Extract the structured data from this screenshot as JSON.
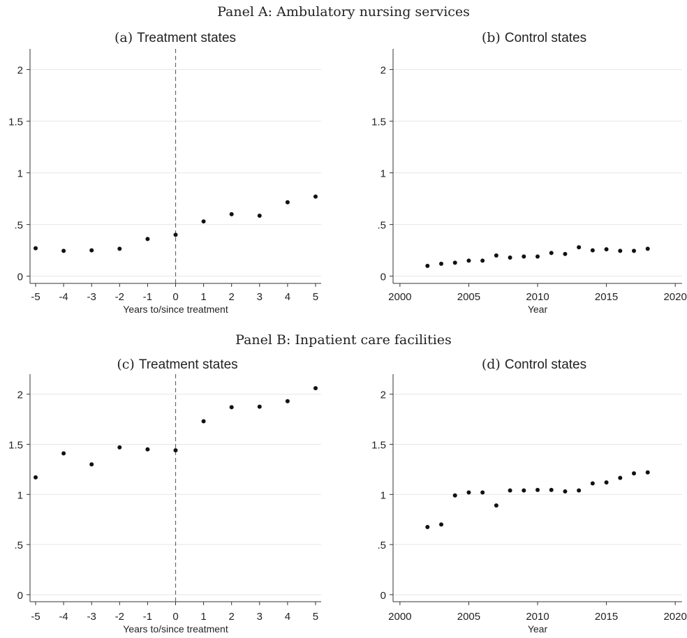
{
  "panels": [
    {
      "label": "Panel A: Ambulatory nursing services"
    },
    {
      "label": "Panel B: Inpatient care facilities"
    }
  ],
  "chart_data": [
    {
      "id": "a",
      "type": "scatter",
      "prefix": "(a)",
      "title": "Treatment states",
      "xlabel": "Years to/since treatment",
      "ylabel": "",
      "xlim": [
        -5.2,
        5.2
      ],
      "ylim": [
        -0.07,
        2.2
      ],
      "xticks": [
        -5,
        -4,
        -3,
        -2,
        -1,
        0,
        1,
        2,
        3,
        4,
        5
      ],
      "xtick_labels": [
        "-5",
        "-4",
        "-3",
        "-2",
        "-1",
        "0",
        "1",
        "2",
        "3",
        "4",
        "5"
      ],
      "yticks": [
        0,
        0.5,
        1,
        1.5,
        2
      ],
      "ytick_labels": [
        "0",
        ".5",
        "1",
        "1.5",
        "2"
      ],
      "grid": true,
      "vline": 0,
      "points": [
        {
          "x": -5,
          "y": 0.27
        },
        {
          "x": -4,
          "y": 0.245
        },
        {
          "x": -3,
          "y": 0.25
        },
        {
          "x": -2,
          "y": 0.265
        },
        {
          "x": -1,
          "y": 0.36
        },
        {
          "x": 0,
          "y": 0.4
        },
        {
          "x": 1,
          "y": 0.53
        },
        {
          "x": 2,
          "y": 0.6
        },
        {
          "x": 3,
          "y": 0.585
        },
        {
          "x": 4,
          "y": 0.715
        },
        {
          "x": 5,
          "y": 0.77
        }
      ]
    },
    {
      "id": "b",
      "type": "scatter",
      "prefix": "(b)",
      "title": "Control states",
      "xlabel": "Year",
      "ylabel": "",
      "xlim": [
        1999.5,
        2020.5
      ],
      "ylim": [
        -0.07,
        2.2
      ],
      "xticks": [
        2000,
        2005,
        2010,
        2015,
        2020
      ],
      "xtick_labels": [
        "2000",
        "2005",
        "2010",
        "2015",
        "2020"
      ],
      "yticks": [
        0,
        0.5,
        1,
        1.5,
        2
      ],
      "ytick_labels": [
        "0",
        ".5",
        "1",
        "1.5",
        "2"
      ],
      "grid": true,
      "vline": null,
      "points": [
        {
          "x": 2002,
          "y": 0.1
        },
        {
          "x": 2003,
          "y": 0.12
        },
        {
          "x": 2004,
          "y": 0.13
        },
        {
          "x": 2005,
          "y": 0.15
        },
        {
          "x": 2006,
          "y": 0.15
        },
        {
          "x": 2007,
          "y": 0.2
        },
        {
          "x": 2008,
          "y": 0.18
        },
        {
          "x": 2009,
          "y": 0.19
        },
        {
          "x": 2010,
          "y": 0.19
        },
        {
          "x": 2011,
          "y": 0.225
        },
        {
          "x": 2012,
          "y": 0.215
        },
        {
          "x": 2013,
          "y": 0.28
        },
        {
          "x": 2014,
          "y": 0.25
        },
        {
          "x": 2015,
          "y": 0.26
        },
        {
          "x": 2016,
          "y": 0.245
        },
        {
          "x": 2017,
          "y": 0.245
        },
        {
          "x": 2018,
          "y": 0.265
        }
      ]
    },
    {
      "id": "c",
      "type": "scatter",
      "prefix": "(c)",
      "title": "Treatment states",
      "xlabel": "Years to/since treatment",
      "ylabel": "",
      "xlim": [
        -5.2,
        5.2
      ],
      "ylim": [
        -0.07,
        2.2
      ],
      "xticks": [
        -5,
        -4,
        -3,
        -2,
        -1,
        0,
        1,
        2,
        3,
        4,
        5
      ],
      "xtick_labels": [
        "-5",
        "-4",
        "-3",
        "-2",
        "-1",
        "0",
        "1",
        "2",
        "3",
        "4",
        "5"
      ],
      "yticks": [
        0,
        0.5,
        1,
        1.5,
        2
      ],
      "ytick_labels": [
        "0",
        ".5",
        "1",
        "1.5",
        "2"
      ],
      "grid": true,
      "vline": 0,
      "points": [
        {
          "x": -5,
          "y": 1.17
        },
        {
          "x": -4,
          "y": 1.41
        },
        {
          "x": -3,
          "y": 1.3
        },
        {
          "x": -2,
          "y": 1.47
        },
        {
          "x": -1,
          "y": 1.45
        },
        {
          "x": 0,
          "y": 1.44
        },
        {
          "x": 1,
          "y": 1.73
        },
        {
          "x": 2,
          "y": 1.87
        },
        {
          "x": 3,
          "y": 1.875
        },
        {
          "x": 4,
          "y": 1.93
        },
        {
          "x": 5,
          "y": 2.06
        }
      ]
    },
    {
      "id": "d",
      "type": "scatter",
      "prefix": "(d)",
      "title": "Control states",
      "xlabel": "Year",
      "ylabel": "",
      "xlim": [
        1999.5,
        2020.5
      ],
      "ylim": [
        -0.07,
        2.2
      ],
      "xticks": [
        2000,
        2005,
        2010,
        2015,
        2020
      ],
      "xtick_labels": [
        "2000",
        "2005",
        "2010",
        "2015",
        "2020"
      ],
      "yticks": [
        0,
        0.5,
        1,
        1.5,
        2
      ],
      "ytick_labels": [
        "0",
        ".5",
        "1",
        "1.5",
        "2"
      ],
      "grid": true,
      "vline": null,
      "points": [
        {
          "x": 2002,
          "y": 0.675
        },
        {
          "x": 2003,
          "y": 0.7
        },
        {
          "x": 2004,
          "y": 0.99
        },
        {
          "x": 2005,
          "y": 1.02
        },
        {
          "x": 2006,
          "y": 1.02
        },
        {
          "x": 2007,
          "y": 0.89
        },
        {
          "x": 2008,
          "y": 1.04
        },
        {
          "x": 2009,
          "y": 1.04
        },
        {
          "x": 2010,
          "y": 1.045
        },
        {
          "x": 2011,
          "y": 1.045
        },
        {
          "x": 2012,
          "y": 1.03
        },
        {
          "x": 2013,
          "y": 1.04
        },
        {
          "x": 2014,
          "y": 1.11
        },
        {
          "x": 2015,
          "y": 1.12
        },
        {
          "x": 2016,
          "y": 1.165
        },
        {
          "x": 2017,
          "y": 1.21
        },
        {
          "x": 2018,
          "y": 1.22
        }
      ]
    }
  ]
}
